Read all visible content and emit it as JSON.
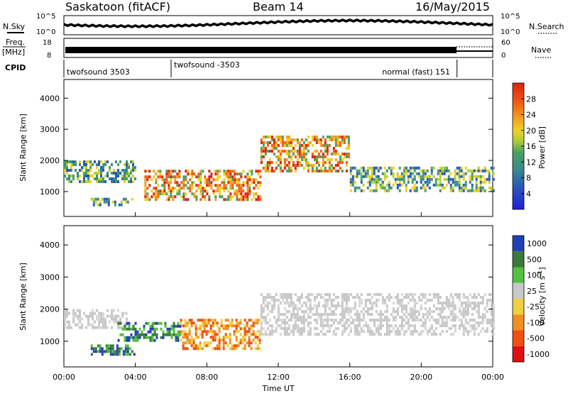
{
  "header": {
    "station": "Saskatoon (fitACF)",
    "beam": "Beam 14",
    "date": "16/May/2015"
  },
  "top_panels": {
    "nsky_label": "N.Sky",
    "nsearch_label": "N.Search",
    "nsky_ticks": [
      "10^5",
      "10^0"
    ],
    "nsearch_ticks": [
      "10^5",
      "10^0"
    ],
    "freq_label": "Freq.",
    "freq_unit": "[MHz]",
    "freq_ticks": [
      "18",
      "8"
    ],
    "nave_label": "Nave",
    "nave_ticks": [
      "60",
      "0"
    ],
    "cpid_label": "CPID",
    "cpid_segments": [
      {
        "label": "twofsound 3503",
        "start_hour": 0,
        "end_hour": 6
      },
      {
        "label": "twofsound -3503",
        "start_hour": 6,
        "end_hour": 22
      },
      {
        "label": "normal (fast) 151",
        "start_hour": 22,
        "end_hour": 24
      }
    ]
  },
  "chart_data": [
    {
      "type": "heatmap",
      "name": "power",
      "ylabel": "Slant Range [km]",
      "yticks": [
        "1000",
        "2000",
        "3000",
        "4000"
      ],
      "ylim": [
        200,
        4600
      ],
      "xlim_hours": [
        0,
        24
      ],
      "colorbar": {
        "label": "Power [dB]",
        "ticks": [
          "4",
          "8",
          "12",
          "16",
          "20",
          "24",
          "28"
        ]
      },
      "bands": [
        {
          "start_hour": 0.0,
          "end_hour": 4.0,
          "range_km": [
            1300,
            2000
          ],
          "level": "med"
        },
        {
          "start_hour": 1.5,
          "end_hour": 4.0,
          "range_km": [
            550,
            800
          ],
          "level": "med"
        },
        {
          "start_hour": 4.5,
          "end_hour": 11.0,
          "range_km": [
            700,
            1700
          ],
          "level": "high"
        },
        {
          "start_hour": 11.0,
          "end_hour": 16.0,
          "range_km": [
            1700,
            2800
          ],
          "level": "high"
        },
        {
          "start_hour": 16.0,
          "end_hour": 24.0,
          "range_km": [
            1000,
            1800
          ],
          "level": "med"
        }
      ]
    },
    {
      "type": "heatmap",
      "name": "velocity",
      "xlabel": "Time UT",
      "ylabel": "Slant Range [km]",
      "yticks": [
        "1000",
        "2000",
        "3000",
        "4000"
      ],
      "ylim": [
        200,
        4600
      ],
      "xlim_hours": [
        0,
        24
      ],
      "xticks": [
        "00:00",
        "04:00",
        "08:00",
        "12:00",
        "16:00",
        "20:00",
        "00:00"
      ],
      "colorbar": {
        "label": "Velocity [m s",
        "label_sup": "-1",
        "label_end": "]",
        "ticks": [
          "1000",
          "500",
          "100",
          "25",
          "-25",
          "-100",
          "-500",
          "-1000"
        ]
      },
      "bands": [
        {
          "start_hour": 0.0,
          "end_hour": 3.5,
          "range_km": [
            1400,
            2000
          ],
          "level": "near-zero"
        },
        {
          "start_hour": 1.5,
          "end_hour": 4.0,
          "range_km": [
            550,
            900
          ],
          "level": "positive"
        },
        {
          "start_hour": 3.0,
          "end_hour": 6.5,
          "range_km": [
            1000,
            1600
          ],
          "level": "positive"
        },
        {
          "start_hour": 6.5,
          "end_hour": 11.0,
          "range_km": [
            800,
            1700
          ],
          "level": "negative"
        },
        {
          "start_hour": 11.0,
          "end_hour": 24.0,
          "range_km": [
            1200,
            2500
          ],
          "level": "near-zero"
        }
      ]
    }
  ],
  "colors": {
    "power_scale": [
      "#1f1fd8",
      "#2a58b8",
      "#3a8a8a",
      "#4aa060",
      "#b7d030",
      "#f0d020",
      "#f0a020",
      "#f06010",
      "#e02010"
    ],
    "velocity_scale": [
      "#2040b8",
      "#3a7a3a",
      "#52c040",
      "#c8c8c8",
      "#f0d040",
      "#f09020",
      "#f05010",
      "#e01010"
    ]
  }
}
